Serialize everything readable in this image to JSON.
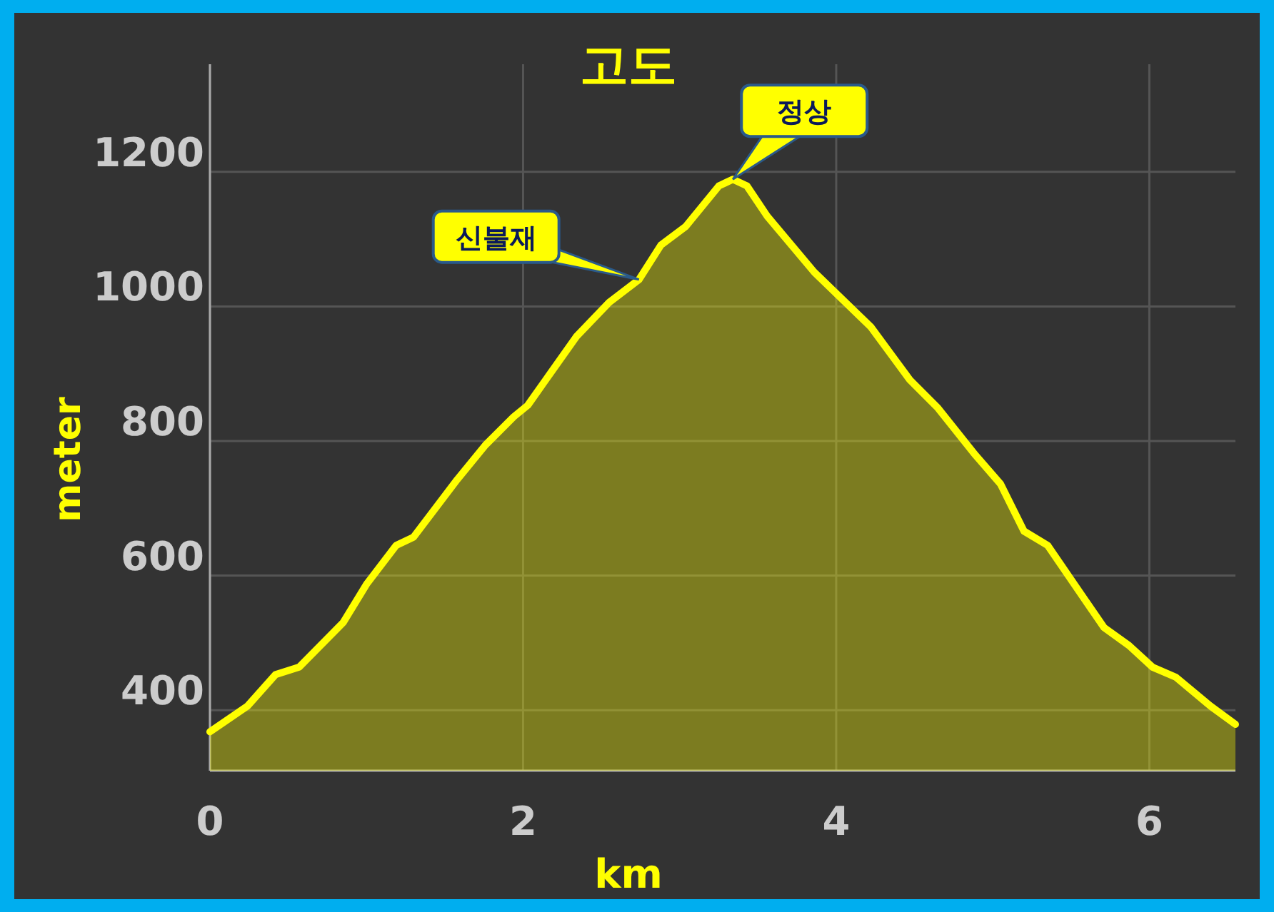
{
  "chart_data": {
    "type": "area",
    "title": "고도",
    "xlabel": "km",
    "ylabel": "meter",
    "xlim": [
      0,
      6.55
    ],
    "ylim": [
      310,
      1360
    ],
    "xticks": [
      0,
      2,
      4,
      6
    ],
    "yticks": [
      400,
      600,
      800,
      1000,
      1200
    ],
    "grid": true,
    "annotations": [
      {
        "text": "신불재",
        "x": 2.74,
        "y": 1040
      },
      {
        "text": "정상",
        "x": 3.34,
        "y": 1189
      }
    ],
    "series": [
      {
        "color": "#ffff00",
        "x": [
          0,
          0.24,
          0.42,
          0.57,
          0.85,
          1.0,
          1.19,
          1.3,
          1.58,
          1.76,
          1.94,
          2.03,
          2.34,
          2.55,
          2.74,
          2.88,
          3.04,
          3.25,
          3.34,
          3.43,
          3.56,
          3.86,
          4.22,
          4.47,
          4.65,
          4.89,
          5.05,
          5.2,
          5.35,
          5.71,
          5.87,
          6.02,
          6.17,
          6.39,
          6.55
        ],
        "values": [
          368,
          406,
          453,
          464,
          530,
          587,
          645,
          657,
          743,
          794,
          836,
          853,
          955,
          1006,
          1040,
          1091,
          1119,
          1179,
          1189,
          1179,
          1134,
          1051,
          970,
          891,
          849,
          779,
          736,
          666,
          645,
          523,
          496,
          464,
          449,
          406,
          379
        ]
      }
    ]
  }
}
